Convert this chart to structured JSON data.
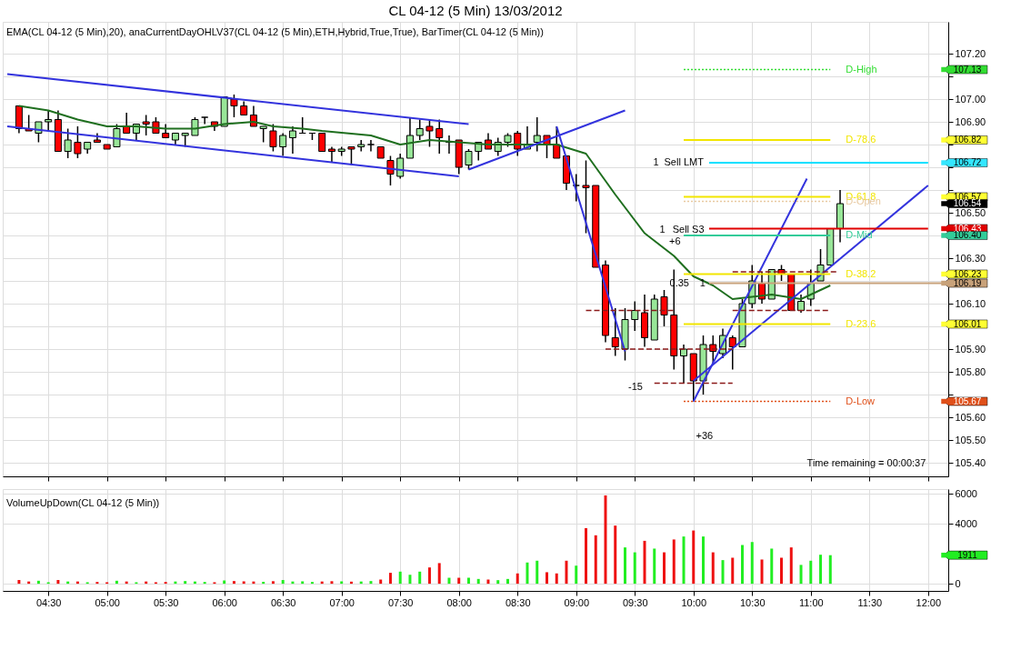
{
  "chart_data": [
    {
      "type": "candlestick",
      "title": "CL 04-12 (5 Min)  13/03/2012",
      "subtitle": "EMA(CL 04-12 (5 Min),20), anaCurrentDayOHLV37(CL 04-12 (5 Min),ETH,Hybrid,True,True), BarTimer(CL 04-12 (5 Min))",
      "xlim": [
        "2012-03-13T04:09",
        "2012-03-13T12:08"
      ],
      "xticks": [
        {
          "value": "2012-03-13T04:30",
          "label": null
        },
        {
          "value": "2012-03-13T05:00",
          "label": null
        },
        {
          "value": "2012-03-13T05:30",
          "label": null
        },
        {
          "value": "2012-03-13T06:00",
          "label": null
        },
        {
          "value": "2012-03-13T06:30",
          "label": null
        },
        {
          "value": "2012-03-13T07:00",
          "label": null
        },
        {
          "value": "2012-03-13T07:30",
          "label": null
        },
        {
          "value": "2012-03-13T08:00",
          "label": null
        },
        {
          "value": "2012-03-13T08:30",
          "label": null
        },
        {
          "value": "2012-03-13T09:00",
          "label": null
        },
        {
          "value": "2012-03-13T09:30",
          "label": null
        },
        {
          "value": "2012-03-13T10:00",
          "label": null
        },
        {
          "value": "2012-03-13T10:30",
          "label": null
        },
        {
          "value": "2012-03-13T11:00",
          "label": null
        },
        {
          "value": "2012-03-13T11:30",
          "label": null
        },
        {
          "value": "2012-03-13T12:00",
          "label": null
        }
      ],
      "ylim": [
        105.34,
        107.34
      ],
      "yticks": [
        {
          "value": 105.4,
          "label": "105.40"
        },
        {
          "value": 105.5,
          "label": "105.50"
        },
        {
          "value": 105.6,
          "label": "105.60"
        },
        {
          "value": 105.7,
          "label": null
        },
        {
          "value": 105.8,
          "label": "105.80"
        },
        {
          "value": 105.9,
          "label": "105.90"
        },
        {
          "value": 106.0,
          "label": null
        },
        {
          "value": 106.1,
          "label": "106.10"
        },
        {
          "value": 106.2,
          "label": null
        },
        {
          "value": 106.3,
          "label": "106.30"
        },
        {
          "value": 106.4,
          "label": null
        },
        {
          "value": 106.5,
          "label": "106.50"
        },
        {
          "value": 106.6,
          "label": null
        },
        {
          "value": 106.7,
          "label": null
        },
        {
          "value": 106.8,
          "label": null
        },
        {
          "value": 106.9,
          "label": "106.90"
        },
        {
          "value": 107.0,
          "label": "107.00"
        },
        {
          "value": 107.1,
          "label": null
        },
        {
          "value": 107.2,
          "label": "107.20"
        }
      ],
      "tick_labels": "y",
      "grid": true,
      "x": [
        "2012-03-13T04:15",
        "2012-03-13T04:20",
        "2012-03-13T04:25",
        "2012-03-13T04:30",
        "2012-03-13T04:35",
        "2012-03-13T04:40",
        "2012-03-13T04:45",
        "2012-03-13T04:50",
        "2012-03-13T04:55",
        "2012-03-13T05:00",
        "2012-03-13T05:05",
        "2012-03-13T05:10",
        "2012-03-13T05:15",
        "2012-03-13T05:20",
        "2012-03-13T05:25",
        "2012-03-13T05:30",
        "2012-03-13T05:35",
        "2012-03-13T05:40",
        "2012-03-13T05:45",
        "2012-03-13T05:50",
        "2012-03-13T05:55",
        "2012-03-13T06:00",
        "2012-03-13T06:05",
        "2012-03-13T06:10",
        "2012-03-13T06:15",
        "2012-03-13T06:20",
        "2012-03-13T06:25",
        "2012-03-13T06:30",
        "2012-03-13T06:35",
        "2012-03-13T06:40",
        "2012-03-13T06:45",
        "2012-03-13T06:50",
        "2012-03-13T06:55",
        "2012-03-13T07:00",
        "2012-03-13T07:05",
        "2012-03-13T07:10",
        "2012-03-13T07:15",
        "2012-03-13T07:20",
        "2012-03-13T07:25",
        "2012-03-13T07:30",
        "2012-03-13T07:35",
        "2012-03-13T07:40",
        "2012-03-13T07:45",
        "2012-03-13T07:50",
        "2012-03-13T07:55",
        "2012-03-13T08:00",
        "2012-03-13T08:05",
        "2012-03-13T08:10",
        "2012-03-13T08:15",
        "2012-03-13T08:20",
        "2012-03-13T08:25",
        "2012-03-13T08:30",
        "2012-03-13T08:35",
        "2012-03-13T08:40",
        "2012-03-13T08:45",
        "2012-03-13T08:50",
        "2012-03-13T08:55",
        "2012-03-13T09:00",
        "2012-03-13T09:05",
        "2012-03-13T09:10",
        "2012-03-13T09:15",
        "2012-03-13T09:20",
        "2012-03-13T09:25",
        "2012-03-13T09:30",
        "2012-03-13T09:35",
        "2012-03-13T09:40",
        "2012-03-13T09:45",
        "2012-03-13T09:50",
        "2012-03-13T09:55",
        "2012-03-13T10:00",
        "2012-03-13T10:05",
        "2012-03-13T10:10",
        "2012-03-13T10:15",
        "2012-03-13T10:20",
        "2012-03-13T10:25",
        "2012-03-13T10:30",
        "2012-03-13T10:35",
        "2012-03-13T10:40",
        "2012-03-13T10:45",
        "2012-03-13T10:50",
        "2012-03-13T10:55",
        "2012-03-13T11:00",
        "2012-03-13T11:05",
        "2012-03-13T11:10",
        "2012-03-13T11:15"
      ],
      "series": [
        {
          "color": "#000000",
          "ohlc": [
            [
              106.97,
              106.97,
              106.85,
              106.87
            ],
            [
              106.87,
              106.93,
              106.86,
              106.86
            ],
            [
              106.85,
              106.9,
              106.81,
              106.9
            ],
            [
              106.9,
              106.95,
              106.86,
              106.91
            ],
            [
              106.91,
              106.95,
              106.77,
              106.77
            ],
            [
              106.77,
              106.87,
              106.74,
              106.82
            ],
            [
              106.81,
              106.88,
              106.74,
              106.76
            ],
            [
              106.78,
              106.81,
              106.76,
              106.81
            ],
            [
              106.82,
              106.85,
              106.81,
              106.81
            ],
            [
              106.8,
              106.8,
              106.78,
              106.78
            ],
            [
              106.79,
              106.89,
              106.79,
              106.87
            ],
            [
              106.88,
              106.94,
              106.85,
              106.85
            ],
            [
              106.85,
              106.89,
              106.82,
              106.89
            ],
            [
              106.9,
              106.93,
              106.84,
              106.89
            ],
            [
              106.9,
              106.92,
              106.85,
              106.85
            ],
            [
              106.85,
              106.89,
              106.83,
              106.83
            ],
            [
              106.82,
              106.85,
              106.8,
              106.85
            ],
            [
              106.84,
              106.85,
              106.79,
              106.85
            ],
            [
              106.84,
              106.92,
              106.84,
              106.91
            ],
            [
              106.92,
              106.92,
              106.89,
              106.92
            ],
            [
              106.9,
              106.9,
              106.86,
              106.88
            ],
            [
              106.88,
              107.01,
              106.88,
              107.01
            ],
            [
              107.0,
              107.02,
              106.92,
              106.97
            ],
            [
              106.97,
              106.99,
              106.93,
              106.93
            ],
            [
              106.93,
              106.97,
              106.88,
              106.88
            ],
            [
              106.87,
              106.88,
              106.81,
              106.88
            ],
            [
              106.86,
              106.89,
              106.77,
              106.79
            ],
            [
              106.79,
              106.85,
              106.75,
              106.84
            ],
            [
              106.83,
              106.88,
              106.76,
              106.86
            ],
            [
              106.85,
              106.92,
              106.85,
              106.85
            ],
            [
              106.85,
              106.85,
              106.82,
              106.85
            ],
            [
              106.85,
              106.85,
              106.77,
              106.77
            ],
            [
              106.78,
              106.79,
              106.72,
              106.77
            ],
            [
              106.77,
              106.79,
              106.75,
              106.78
            ],
            [
              106.79,
              106.79,
              106.71,
              106.78
            ],
            [
              106.79,
              106.82,
              106.77,
              106.8
            ],
            [
              106.8,
              106.82,
              106.77,
              106.8
            ],
            [
              106.79,
              106.79,
              106.74,
              106.74
            ],
            [
              106.73,
              106.75,
              106.62,
              106.67
            ],
            [
              106.66,
              106.76,
              106.65,
              106.74
            ],
            [
              106.74,
              106.92,
              106.74,
              106.84
            ],
            [
              106.84,
              106.91,
              106.82,
              106.87
            ],
            [
              106.88,
              106.91,
              106.79,
              106.86
            ],
            [
              106.87,
              106.91,
              106.76,
              106.83
            ],
            [
              106.81,
              106.84,
              106.76,
              106.81
            ],
            [
              106.82,
              106.82,
              106.67,
              106.7
            ],
            [
              106.71,
              106.78,
              106.69,
              106.77
            ],
            [
              106.77,
              106.81,
              106.73,
              106.81
            ],
            [
              106.82,
              106.85,
              106.78,
              106.78
            ],
            [
              106.77,
              106.83,
              106.75,
              106.81
            ],
            [
              106.81,
              106.85,
              106.79,
              106.84
            ],
            [
              106.85,
              106.86,
              106.75,
              106.78
            ],
            [
              106.78,
              106.88,
              106.78,
              106.8
            ],
            [
              106.81,
              106.92,
              106.77,
              106.84
            ],
            [
              106.84,
              106.84,
              106.74,
              106.8
            ],
            [
              106.8,
              106.88,
              106.74,
              106.74
            ],
            [
              106.75,
              106.75,
              106.6,
              106.63
            ],
            [
              106.62,
              106.67,
              106.55,
              106.62
            ],
            [
              106.62,
              106.73,
              106.41,
              106.61
            ],
            [
              106.62,
              106.62,
              106.26,
              106.26
            ],
            [
              106.27,
              106.29,
              105.93,
              105.96
            ],
            [
              105.95,
              106.08,
              105.87,
              105.91
            ],
            [
              105.9,
              106.08,
              105.85,
              106.03
            ],
            [
              106.03,
              106.11,
              105.98,
              106.07
            ],
            [
              106.06,
              106.14,
              105.91,
              105.95
            ],
            [
              105.94,
              106.14,
              105.94,
              106.12
            ],
            [
              106.13,
              106.16,
              106.0,
              106.05
            ],
            [
              106.05,
              106.25,
              105.81,
              105.87
            ],
            [
              105.87,
              105.92,
              105.75,
              105.9
            ],
            [
              105.88,
              105.88,
              105.67,
              105.76
            ],
            [
              105.76,
              105.96,
              105.7,
              105.92
            ],
            [
              105.92,
              105.96,
              105.84,
              105.89
            ],
            [
              105.88,
              105.99,
              105.86,
              105.96
            ],
            [
              105.95,
              105.96,
              105.81,
              105.91
            ],
            [
              105.91,
              106.12,
              105.91,
              106.1
            ],
            [
              106.1,
              106.27,
              106.08,
              106.2
            ],
            [
              106.19,
              106.24,
              106.1,
              106.12
            ],
            [
              106.12,
              106.25,
              106.12,
              106.25
            ],
            [
              106.25,
              106.27,
              106.2,
              106.23
            ],
            [
              106.23,
              106.23,
              106.07,
              106.07
            ],
            [
              106.07,
              106.14,
              106.06,
              106.11
            ],
            [
              106.12,
              106.25,
              106.09,
              106.19
            ],
            [
              106.2,
              106.34,
              106.2,
              106.27
            ],
            [
              106.27,
              106.43,
              106.27,
              106.43
            ],
            [
              106.43,
              106.6,
              106.37,
              106.54
            ]
          ],
          "colors": [
            "#ff0000",
            "#ff0000",
            "#98e698",
            "#98e698",
            "#ff0000",
            "#98e698",
            "#ff0000",
            "#98e698",
            "#ff0000",
            "#ff0000",
            "#98e698",
            "#ff0000",
            "#98e698",
            "#ff0000",
            "#ff0000",
            "#ff0000",
            "#98e698",
            "#98e698",
            "#98e698",
            "#000000",
            "#ff0000",
            "#98e698",
            "#ff0000",
            "#ff0000",
            "#ff0000",
            "#98e698",
            "#ff0000",
            "#98e698",
            "#98e698",
            "#000000",
            "#000000",
            "#ff0000",
            "#ff0000",
            "#98e698",
            "#ff0000",
            "#98e698",
            "#000000",
            "#ff0000",
            "#ff0000",
            "#98e698",
            "#98e698",
            "#98e698",
            "#ff0000",
            "#ff0000",
            "#000000",
            "#ff0000",
            "#98e698",
            "#98e698",
            "#ff0000",
            "#98e698",
            "#98e698",
            "#ff0000",
            "#98e698",
            "#98e698",
            "#ff0000",
            "#ff0000",
            "#ff0000",
            "#000000",
            "#ff0000",
            "#ff0000",
            "#ff0000",
            "#ff0000",
            "#98e698",
            "#98e698",
            "#ff0000",
            "#98e698",
            "#ff0000",
            "#ff0000",
            "#98e698",
            "#ff0000",
            "#98e698",
            "#ff0000",
            "#98e698",
            "#ff0000",
            "#98e698",
            "#98e698",
            "#ff0000",
            "#98e698",
            "#ff0000",
            "#ff0000",
            "#98e698",
            "#98e698",
            "#98e698",
            "#98e698",
            "#98e698"
          ]
        },
        {
          "type": "line",
          "color": "#1f6f1f",
          "line_style": "solid",
          "x": [
            "2012-03-13T04:15",
            "2012-03-13T04:30",
            "2012-03-13T04:45",
            "2012-03-13T05:00",
            "2012-03-13T05:15",
            "2012-03-13T05:30",
            "2012-03-13T05:45",
            "2012-03-13T06:00",
            "2012-03-13T06:15",
            "2012-03-13T06:25",
            "2012-03-13T06:40",
            "2012-03-13T06:50",
            "2012-03-13T07:15",
            "2012-03-13T07:30",
            "2012-03-13T07:45",
            "2012-03-13T08:00",
            "2012-03-13T08:15",
            "2012-03-13T08:40",
            "2012-03-13T08:50",
            "2012-03-13T09:05",
            "2012-03-13T09:10",
            "2012-03-13T09:20",
            "2012-03-13T09:35",
            "2012-03-13T09:50",
            "2012-03-13T10:00",
            "2012-03-13T10:10",
            "2012-03-13T10:20",
            "2012-03-13T10:40",
            "2012-03-13T10:55",
            "2012-03-13T11:10"
          ],
          "values": [
            106.97,
            106.95,
            106.91,
            106.88,
            106.88,
            106.87,
            106.87,
            106.89,
            106.9,
            106.88,
            106.87,
            106.86,
            106.84,
            106.8,
            106.82,
            106.81,
            106.8,
            106.8,
            106.8,
            106.76,
            106.7,
            106.58,
            106.41,
            106.31,
            106.22,
            106.18,
            106.12,
            106.14,
            106.12,
            106.18
          ]
        },
        {
          "type": "line",
          "color": "#3333dd",
          "line_style": "solid",
          "x": [
            "2012-03-13T04:09",
            "2012-03-13T08:05"
          ],
          "values": [
            107.11,
            106.89
          ]
        },
        {
          "type": "line",
          "color": "#3333dd",
          "line_style": "solid",
          "x": [
            "2012-03-13T04:09",
            "2012-03-13T08:00"
          ],
          "values": [
            106.88,
            106.66
          ]
        },
        {
          "type": "line",
          "color": "#3333dd",
          "line_style": "solid",
          "x": [
            "2012-03-13T08:05",
            "2012-03-13T09:25"
          ],
          "values": [
            106.69,
            106.95
          ]
        },
        {
          "type": "line",
          "color": "#3333dd",
          "line_style": "solid",
          "x": [
            "2012-03-13T08:50",
            "2012-03-13T09:25"
          ],
          "values": [
            106.88,
            105.89
          ]
        },
        {
          "type": "line",
          "color": "#3333dd",
          "line_style": "solid",
          "x": [
            "2012-03-13T10:00",
            "2012-03-13T10:58"
          ],
          "values": [
            105.67,
            106.65
          ]
        },
        {
          "type": "line",
          "color": "#3333dd",
          "line_style": "solid",
          "x": [
            "2012-03-13T10:00",
            "2012-03-13T12:00"
          ],
          "values": [
            105.76,
            106.62
          ]
        },
        {
          "type": "line",
          "color": "#8b1a1a",
          "line_style": "dashed",
          "x": [
            "2012-03-13T09:05",
            "2012-03-13T09:50"
          ],
          "values": [
            106.07,
            106.07
          ]
        },
        {
          "type": "line",
          "color": "#8b1a1a",
          "line_style": "dashed",
          "x": [
            "2012-03-13T09:15",
            "2012-03-13T10:20"
          ],
          "values": [
            105.9,
            105.9
          ]
        },
        {
          "type": "line",
          "color": "#8b1a1a",
          "line_style": "dashed",
          "x": [
            "2012-03-13T09:40",
            "2012-03-13T10:20"
          ],
          "values": [
            105.75,
            105.75
          ]
        },
        {
          "type": "line",
          "color": "#8b1a1a",
          "line_style": "dashed",
          "x": [
            "2012-03-13T10:20",
            "2012-03-13T11:14"
          ],
          "values": [
            106.24,
            106.24
          ]
        },
        {
          "type": "line",
          "color": "#8b1a1a",
          "line_style": "dashed",
          "x": [
            "2012-03-13T10:20",
            "2012-03-13T11:10"
          ],
          "values": [
            106.07,
            106.07
          ]
        },
        {
          "type": "line",
          "color": "#00e0ff",
          "line_style": "solid",
          "x": [
            "2012-03-13T10:08",
            "2012-03-13T12:00"
          ],
          "values": [
            106.72,
            106.72
          ]
        },
        {
          "type": "line",
          "color": "#e00000",
          "line_style": "solid",
          "x": [
            "2012-03-13T10:08",
            "2012-03-13T12:00"
          ],
          "values": [
            106.43,
            106.43
          ]
        },
        {
          "type": "line",
          "color": "#c8a27a",
          "line_style": "solid",
          "x": [
            "2012-03-13T10:08",
            "2012-03-13T12:08"
          ],
          "values": [
            106.19,
            106.19
          ]
        },
        {
          "type": "line",
          "name": "D-High",
          "color": "#33dd33",
          "line_style": "dotted",
          "x": [
            "2012-03-13T09:55",
            "2012-03-13T11:10"
          ],
          "values": [
            107.13,
            107.13
          ]
        },
        {
          "type": "line",
          "name": "D-78.6",
          "color": "#f2e600",
          "line_style": "solid",
          "x": [
            "2012-03-13T09:55",
            "2012-03-13T11:10"
          ],
          "values": [
            106.82,
            106.82
          ]
        },
        {
          "type": "line",
          "name": "D-61.8",
          "color": "#f2e600",
          "line_style": "solid",
          "x": [
            "2012-03-13T09:55",
            "2012-03-13T11:10"
          ],
          "values": [
            106.57,
            106.57
          ]
        },
        {
          "type": "line",
          "name": "D-Open",
          "color": "#e8c9a0",
          "line_style": "dotted",
          "x": [
            "2012-03-13T09:55",
            "2012-03-13T11:10"
          ],
          "values": [
            106.55,
            106.55
          ]
        },
        {
          "type": "line",
          "name": "D-Mid",
          "color": "#33cc99",
          "line_style": "solid",
          "x": [
            "2012-03-13T09:55",
            "2012-03-13T11:10"
          ],
          "values": [
            106.4,
            106.4
          ]
        },
        {
          "type": "line",
          "name": "D-38.2",
          "color": "#f2e600",
          "line_style": "solid",
          "x": [
            "2012-03-13T09:55",
            "2012-03-13T11:10"
          ],
          "values": [
            106.23,
            106.23
          ]
        },
        {
          "type": "line",
          "name": "D-23.6",
          "color": "#f2e600",
          "line_style": "solid",
          "x": [
            "2012-03-13T09:55",
            "2012-03-13T11:10"
          ],
          "values": [
            106.01,
            106.01
          ]
        },
        {
          "type": "line",
          "name": "D-Low",
          "color": "#e0501a",
          "line_style": "dotted",
          "x": [
            "2012-03-13T09:55",
            "2012-03-13T11:10"
          ],
          "values": [
            105.67,
            105.67
          ]
        },
        {
          "type": "scatter",
          "marker": "square",
          "x": [
            "2012-03-13T12:08",
            "2012-03-13T12:08",
            "2012-03-13T12:08",
            "2012-03-13T12:08",
            "2012-03-13T12:08",
            "2012-03-13T12:08",
            "2012-03-13T12:08",
            "2012-03-13T12:08",
            "2012-03-13T12:08",
            "2012-03-13T12:08",
            "2012-03-13T12:08"
          ],
          "values": [
            107.13,
            106.82,
            106.72,
            106.57,
            106.54,
            106.43,
            106.4,
            106.23,
            106.19,
            106.01,
            105.67
          ],
          "colors": [
            "#33dd33",
            "#ffff33",
            "#33e6ff",
            "#ffff33",
            "#000000",
            "#e00000",
            "#33cc99",
            "#ffff33",
            "#c8a27a",
            "#ffff33",
            "#e0501a"
          ],
          "value_labels": [
            "107.13",
            "106.82",
            "106.72",
            "106.57",
            "106.54",
            "106.43",
            "106.40",
            "106.23",
            "106.19",
            "106.01",
            "105.67"
          ]
        }
      ],
      "annotations": [
        "Time remaining = 00:00:37",
        "+6",
        "-15",
        "+36",
        "1",
        "Sell LMT",
        "1",
        "Sell S3",
        "0.35",
        "1"
      ]
    },
    {
      "type": "bar",
      "xlim": [
        "2012-03-13T04:09",
        "2012-03-13T12:08"
      ],
      "xticks": [
        {
          "value": "2012-03-13T04:30",
          "label": "04:30"
        },
        {
          "value": "2012-03-13T05:00",
          "label": "05:00"
        },
        {
          "value": "2012-03-13T05:30",
          "label": "05:30"
        },
        {
          "value": "2012-03-13T06:00",
          "label": "06:00"
        },
        {
          "value": "2012-03-13T06:30",
          "label": "06:30"
        },
        {
          "value": "2012-03-13T07:00",
          "label": "07:00"
        },
        {
          "value": "2012-03-13T07:30",
          "label": "07:30"
        },
        {
          "value": "2012-03-13T08:00",
          "label": "08:00"
        },
        {
          "value": "2012-03-13T08:30",
          "label": "08:30"
        },
        {
          "value": "2012-03-13T09:00",
          "label": "09:00"
        },
        {
          "value": "2012-03-13T09:30",
          "label": "09:30"
        },
        {
          "value": "2012-03-13T10:00",
          "label": "10:00"
        },
        {
          "value": "2012-03-13T10:30",
          "label": "10:30"
        },
        {
          "value": "2012-03-13T11:00",
          "label": "11:00"
        },
        {
          "value": "2012-03-13T11:30",
          "label": "11:30"
        },
        {
          "value": "2012-03-13T12:00",
          "label": "12:00"
        }
      ],
      "ylim": [
        -480,
        6330
      ],
      "yticks": [
        0,
        4000,
        6000
      ],
      "grid": true,
      "x": [
        "2012-03-13T04:15",
        "2012-03-13T04:20",
        "2012-03-13T04:25",
        "2012-03-13T04:30",
        "2012-03-13T04:35",
        "2012-03-13T04:40",
        "2012-03-13T04:45",
        "2012-03-13T04:50",
        "2012-03-13T04:55",
        "2012-03-13T05:00",
        "2012-03-13T05:05",
        "2012-03-13T05:10",
        "2012-03-13T05:15",
        "2012-03-13T05:20",
        "2012-03-13T05:25",
        "2012-03-13T05:30",
        "2012-03-13T05:35",
        "2012-03-13T05:40",
        "2012-03-13T05:45",
        "2012-03-13T05:50",
        "2012-03-13T05:55",
        "2012-03-13T06:00",
        "2012-03-13T06:05",
        "2012-03-13T06:10",
        "2012-03-13T06:15",
        "2012-03-13T06:20",
        "2012-03-13T06:25",
        "2012-03-13T06:30",
        "2012-03-13T06:35",
        "2012-03-13T06:40",
        "2012-03-13T06:45",
        "2012-03-13T06:50",
        "2012-03-13T06:55",
        "2012-03-13T07:00",
        "2012-03-13T07:05",
        "2012-03-13T07:10",
        "2012-03-13T07:15",
        "2012-03-13T07:20",
        "2012-03-13T07:25",
        "2012-03-13T07:30",
        "2012-03-13T07:35",
        "2012-03-13T07:40",
        "2012-03-13T07:45",
        "2012-03-13T07:50",
        "2012-03-13T07:55",
        "2012-03-13T08:00",
        "2012-03-13T08:05",
        "2012-03-13T08:10",
        "2012-03-13T08:15",
        "2012-03-13T08:20",
        "2012-03-13T08:25",
        "2012-03-13T08:30",
        "2012-03-13T08:35",
        "2012-03-13T08:40",
        "2012-03-13T08:45",
        "2012-03-13T08:50",
        "2012-03-13T08:55",
        "2012-03-13T09:00",
        "2012-03-13T09:05",
        "2012-03-13T09:10",
        "2012-03-13T09:15",
        "2012-03-13T09:20",
        "2012-03-13T09:25",
        "2012-03-13T09:30",
        "2012-03-13T09:35",
        "2012-03-13T09:40",
        "2012-03-13T09:45",
        "2012-03-13T09:50",
        "2012-03-13T09:55",
        "2012-03-13T10:00",
        "2012-03-13T10:05",
        "2012-03-13T10:10",
        "2012-03-13T10:15",
        "2012-03-13T10:20",
        "2012-03-13T10:25",
        "2012-03-13T10:30",
        "2012-03-13T10:35",
        "2012-03-13T10:40",
        "2012-03-13T10:45",
        "2012-03-13T10:50",
        "2012-03-13T10:55",
        "2012-03-13T11:00",
        "2012-03-13T11:05",
        "2012-03-13T11:10"
      ],
      "series": [
        {
          "values": [
            250,
            150,
            200,
            100,
            250,
            150,
            150,
            100,
            120,
            100,
            200,
            150,
            100,
            150,
            100,
            120,
            150,
            180,
            150,
            120,
            100,
            220,
            180,
            160,
            150,
            130,
            170,
            250,
            150,
            160,
            120,
            150,
            170,
            160,
            140,
            150,
            180,
            280,
            730,
            810,
            600,
            810,
            1090,
            1380,
            400,
            400,
            400,
            320,
            280,
            240,
            320,
            690,
            1420,
            1540,
            770,
            690,
            1540,
            1210,
            3720,
            3240,
            5910,
            3890,
            2430,
            2100,
            2870,
            2350,
            2100,
            2960,
            3160,
            3560,
            3160,
            2100,
            1580,
            1740,
            2590,
            2790,
            1620,
            2350,
            1740,
            2430,
            1260,
            1540,
            1940,
            1911
          ],
          "colors": [
            "#ee1111",
            "#ee1111",
            "#22ee22",
            "#22ee22",
            "#ee1111",
            "#22ee22",
            "#ee1111",
            "#22ee22",
            "#ee1111",
            "#ee1111",
            "#22ee22",
            "#ee1111",
            "#22ee22",
            "#ee1111",
            "#ee1111",
            "#ee1111",
            "#22ee22",
            "#22ee22",
            "#22ee22",
            "#22ee22",
            "#ee1111",
            "#22ee22",
            "#ee1111",
            "#ee1111",
            "#ee1111",
            "#22ee22",
            "#ee1111",
            "#22ee22",
            "#22ee22",
            "#22ee22",
            "#22ee22",
            "#ee1111",
            "#ee1111",
            "#22ee22",
            "#ee1111",
            "#22ee22",
            "#22ee22",
            "#ee1111",
            "#ee1111",
            "#22ee22",
            "#22ee22",
            "#22ee22",
            "#ee1111",
            "#ee1111",
            "#22ee22",
            "#ee1111",
            "#22ee22",
            "#22ee22",
            "#ee1111",
            "#22ee22",
            "#22ee22",
            "#ee1111",
            "#22ee22",
            "#22ee22",
            "#ee1111",
            "#ee1111",
            "#ee1111",
            "#22ee22",
            "#ee1111",
            "#ee1111",
            "#ee1111",
            "#ee1111",
            "#22ee22",
            "#22ee22",
            "#ee1111",
            "#22ee22",
            "#ee1111",
            "#ee1111",
            "#22ee22",
            "#ee1111",
            "#22ee22",
            "#ee1111",
            "#22ee22",
            "#ee1111",
            "#22ee22",
            "#22ee22",
            "#ee1111",
            "#22ee22",
            "#ee1111",
            "#ee1111",
            "#22ee22",
            "#22ee22",
            "#22ee22",
            "#22ee22"
          ]
        },
        {
          "type": "scatter",
          "marker": "square",
          "x": [
            "2012-03-13T12:08"
          ],
          "values": [
            1911
          ],
          "colors": [
            "#22ee22"
          ],
          "value_labels": [
            "1911"
          ]
        }
      ],
      "annotations": [
        "VolumeUpDown(CL 04-12 (5 Min))"
      ]
    }
  ]
}
